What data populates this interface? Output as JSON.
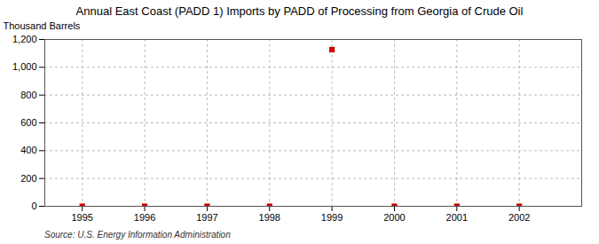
{
  "chart_data": {
    "type": "scatter",
    "title": "Annual East Coast (PADD 1) Imports by PADD of Processing from Georgia of Crude Oil",
    "ylabel": "Thousand Barrels",
    "source": "Source: U.S. Energy Information Administration",
    "x": [
      1995,
      1996,
      1997,
      1998,
      1999,
      2000,
      2001,
      2002
    ],
    "values": [
      0,
      0,
      0,
      0,
      1127,
      0,
      0,
      0
    ],
    "color": "#cc0000",
    "marker": "square",
    "xlim": [
      1994.4,
      2003.0
    ],
    "xticks": [
      1995,
      1996,
      1997,
      1998,
      1999,
      2000,
      2001,
      2002
    ],
    "ylim": [
      0,
      1200
    ],
    "yticks": [
      0,
      200,
      400,
      600,
      800,
      {
        "value": 1000,
        "label": "1,000"
      },
      {
        "value": 1200,
        "label": "1,200"
      }
    ],
    "grid": true
  }
}
